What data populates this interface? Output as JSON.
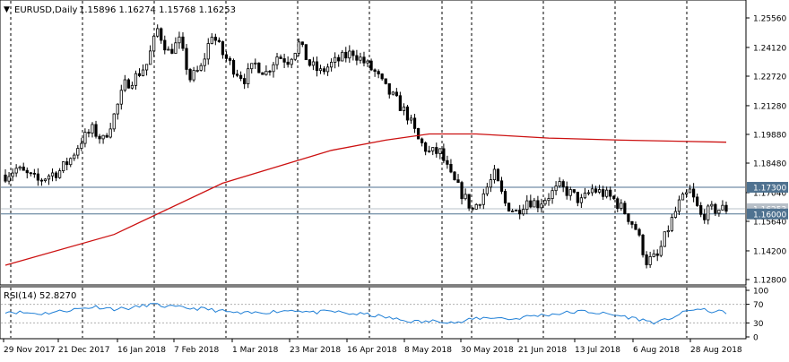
{
  "header": {
    "symbol": "EURUSD,Daily",
    "ohlc": "1.15896 1.16274 1.15768 1.16253"
  },
  "main_axis": {
    "labels": [
      "1.25560",
      "1.24120",
      "1.22720",
      "1.21280",
      "1.19880",
      "1.18480",
      "1.17040",
      "1.15640",
      "1.14200",
      "1.12800"
    ]
  },
  "hlines": [
    {
      "label": "1.17300",
      "color": "#4f7290"
    },
    {
      "label": "1.16253",
      "color": "#b8c0c8"
    },
    {
      "label": "1.16000",
      "color": "#4f7290"
    }
  ],
  "x_axis": {
    "labels": [
      "29 Nov 2017",
      "21 Dec 2017",
      "16 Jan 2018",
      "7 Feb 2018",
      "1 Mar 2018",
      "23 Mar 2018",
      "16 Apr 2018",
      "8 May 2018",
      "30 May 2018",
      "21 Jun 2018",
      "13 Jul 2018",
      "6 Aug 2018",
      "28 Aug 2018"
    ]
  },
  "rsi": {
    "title": "RSI(14) 52.8270",
    "levels": [
      "100",
      "70",
      "30",
      "0"
    ],
    "color": "#1f7fd6"
  },
  "ma": {
    "color": "#cc1111"
  },
  "chart_data": {
    "type": "candlestick",
    "ylim": [
      1.128,
      1.2556
    ],
    "close_path": [
      [
        0,
        1.179
      ],
      [
        3,
        1.182
      ],
      [
        6,
        1.179
      ],
      [
        9,
        1.176
      ],
      [
        12,
        1.179
      ],
      [
        15,
        1.181
      ],
      [
        18,
        1.187
      ],
      [
        21,
        1.196
      ],
      [
        24,
        1.201
      ],
      [
        27,
        1.196
      ],
      [
        30,
        1.208
      ],
      [
        33,
        1.223
      ],
      [
        36,
        1.227
      ],
      [
        39,
        1.233
      ],
      [
        42,
        1.25
      ],
      [
        45,
        1.239
      ],
      [
        48,
        1.244
      ],
      [
        51,
        1.226
      ],
      [
        54,
        1.231
      ],
      [
        57,
        1.248
      ],
      [
        60,
        1.238
      ],
      [
        63,
        1.231
      ],
      [
        66,
        1.226
      ],
      [
        69,
        1.233
      ],
      [
        72,
        1.229
      ],
      [
        75,
        1.237
      ],
      [
        78,
        1.235
      ],
      [
        81,
        1.243
      ],
      [
        84,
        1.233
      ],
      [
        87,
        1.229
      ],
      [
        90,
        1.233
      ],
      [
        93,
        1.236
      ],
      [
        96,
        1.239
      ],
      [
        99,
        1.234
      ],
      [
        102,
        1.229
      ],
      [
        105,
        1.221
      ],
      [
        108,
        1.215
      ],
      [
        111,
        1.208
      ],
      [
        114,
        1.196
      ],
      [
        117,
        1.19
      ],
      [
        120,
        1.19
      ],
      [
        123,
        1.178
      ],
      [
        126,
        1.17
      ],
      [
        129,
        1.162
      ],
      [
        132,
        1.17
      ],
      [
        135,
        1.179
      ],
      [
        138,
        1.165
      ],
      [
        141,
        1.161
      ],
      [
        144,
        1.167
      ],
      [
        147,
        1.165
      ],
      [
        150,
        1.169
      ],
      [
        153,
        1.173
      ],
      [
        156,
        1.17
      ],
      [
        159,
        1.166
      ],
      [
        162,
        1.172
      ],
      [
        165,
        1.17
      ],
      [
        168,
        1.167
      ],
      [
        171,
        1.161
      ],
      [
        174,
        1.153
      ],
      [
        177,
        1.137
      ],
      [
        180,
        1.139
      ],
      [
        183,
        1.153
      ],
      [
        186,
        1.165
      ],
      [
        189,
        1.171
      ],
      [
        192,
        1.159
      ],
      [
        195,
        1.162
      ],
      [
        198,
        1.1625
      ]
    ],
    "ma_path": [
      [
        0,
        1.135
      ],
      [
        30,
        1.15
      ],
      [
        60,
        1.175
      ],
      [
        90,
        1.191
      ],
      [
        105,
        1.196
      ],
      [
        117,
        1.199
      ],
      [
        130,
        1.199
      ],
      [
        150,
        1.197
      ],
      [
        170,
        1.196
      ],
      [
        199,
        1.195
      ]
    ],
    "rsi_path": [
      [
        0,
        55
      ],
      [
        5,
        52
      ],
      [
        10,
        50
      ],
      [
        15,
        55
      ],
      [
        20,
        60
      ],
      [
        25,
        65
      ],
      [
        30,
        60
      ],
      [
        35,
        62
      ],
      [
        40,
        70
      ],
      [
        45,
        65
      ],
      [
        50,
        62
      ],
      [
        55,
        60
      ],
      [
        60,
        55
      ],
      [
        65,
        50
      ],
      [
        70,
        52
      ],
      [
        75,
        55
      ],
      [
        80,
        58
      ],
      [
        85,
        52
      ],
      [
        90,
        55
      ],
      [
        95,
        50
      ],
      [
        100,
        48
      ],
      [
        105,
        42
      ],
      [
        110,
        35
      ],
      [
        115,
        32
      ],
      [
        120,
        35
      ],
      [
        125,
        30
      ],
      [
        130,
        40
      ],
      [
        135,
        42
      ],
      [
        140,
        38
      ],
      [
        145,
        45
      ],
      [
        150,
        48
      ],
      [
        155,
        52
      ],
      [
        160,
        55
      ],
      [
        165,
        50
      ],
      [
        170,
        45
      ],
      [
        175,
        38
      ],
      [
        180,
        30
      ],
      [
        185,
        45
      ],
      [
        190,
        60
      ],
      [
        195,
        55
      ],
      [
        199,
        53
      ]
    ]
  }
}
